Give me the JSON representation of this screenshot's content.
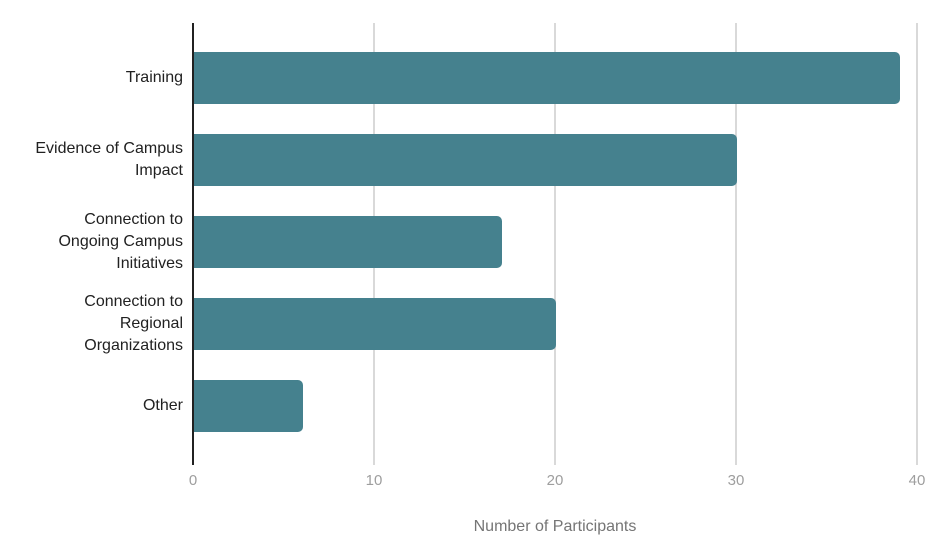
{
  "chart_data": {
    "type": "bar",
    "orientation": "horizontal",
    "title": "",
    "xlabel": "Number of Participants",
    "ylabel": "",
    "categories": [
      "Training",
      "Evidence of Campus\nImpact",
      "Connection to\nOngoing Campus\nInitiatives",
      "Connection to\nRegional\nOrganizations",
      "Other"
    ],
    "values": [
      39,
      30,
      17,
      20,
      6
    ],
    "xlim": [
      0,
      40
    ],
    "x_ticks": [
      0,
      10,
      20,
      30,
      40
    ],
    "grid": "vertical gridlines on",
    "legend": "none",
    "colors": {
      "bar": "#45818e",
      "axis_line": "#212121",
      "gridline": "#d9d9d9",
      "tick_label": "#9e9e9e",
      "category_label": "#212121",
      "axis_title": "#757575",
      "background": "#ffffff"
    }
  }
}
